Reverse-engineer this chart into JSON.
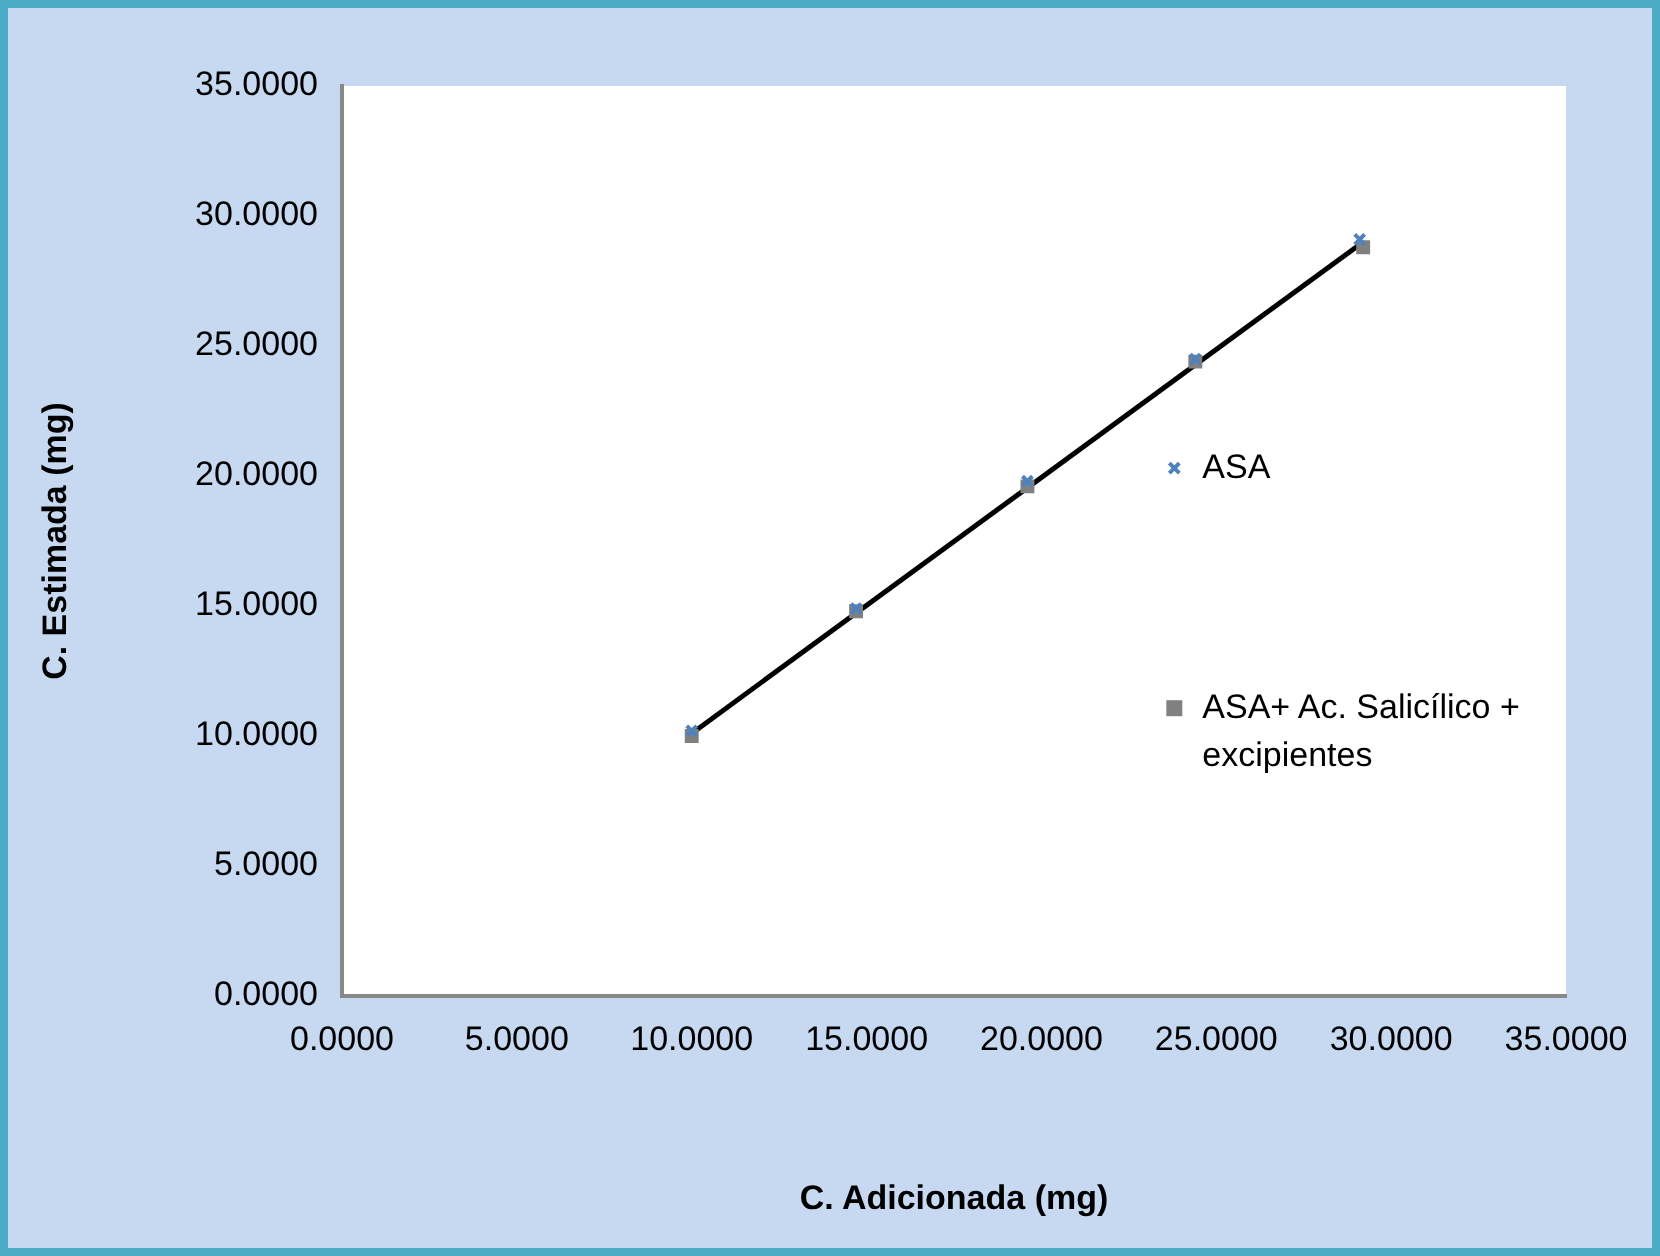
{
  "chart_data": {
    "type": "scatter",
    "xlabel": "C. Adicionada (mg)",
    "ylabel": "C. Estimada (mg)",
    "xlim": [
      0,
      35
    ],
    "ylim": [
      0,
      35
    ],
    "xticks": [
      {
        "value": 0,
        "label": "0.0000"
      },
      {
        "value": 5,
        "label": "5.0000"
      },
      {
        "value": 10,
        "label": "10.0000"
      },
      {
        "value": 15,
        "label": "15.0000"
      },
      {
        "value": 20,
        "label": "20.0000"
      },
      {
        "value": 25,
        "label": "25.0000"
      },
      {
        "value": 30,
        "label": "30.0000"
      },
      {
        "value": 35,
        "label": "35.0000"
      }
    ],
    "yticks": [
      {
        "value": 0,
        "label": "0.0000"
      },
      {
        "value": 5,
        "label": "5.0000"
      },
      {
        "value": 10,
        "label": "10.0000"
      },
      {
        "value": 15,
        "label": "15.0000"
      },
      {
        "value": 20,
        "label": "20.0000"
      },
      {
        "value": 25,
        "label": "25.0000"
      },
      {
        "value": 30,
        "label": "30.0000"
      },
      {
        "value": 35,
        "label": "35.0000"
      }
    ],
    "grid": false,
    "legend": "right",
    "series": [
      {
        "name": "ASA",
        "color": "#4f81bd",
        "marker": "cross",
        "x": [
          10.0,
          14.7,
          19.6,
          24.4,
          29.1
        ],
        "values": [
          10.2,
          14.9,
          19.8,
          24.5,
          29.1
        ]
      },
      {
        "name": "ASA+ Ac. Salicílico + excipientes",
        "color": "#808080",
        "marker": "square",
        "x": [
          10.0,
          14.7,
          19.6,
          24.4,
          29.2
        ],
        "values": [
          10.0,
          14.8,
          19.6,
          24.4,
          28.8
        ]
      },
      {
        "type": "line",
        "color": "#000000",
        "marker": "none",
        "x": [
          10.0,
          29.2
        ],
        "values": [
          10.1,
          29.0
        ]
      }
    ]
  }
}
